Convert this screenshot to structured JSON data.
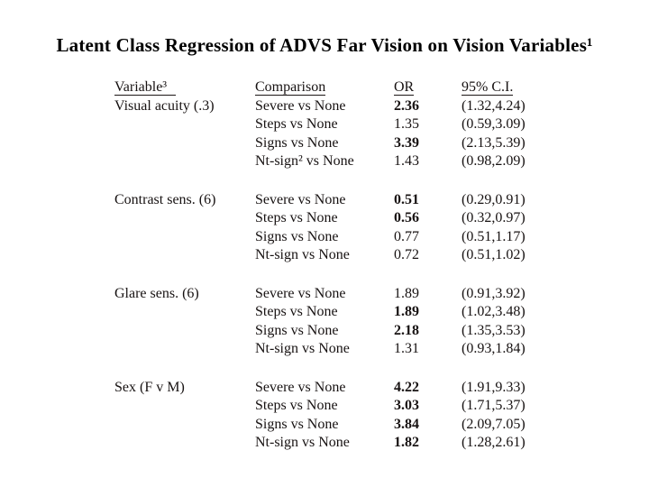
{
  "slide": {
    "title": "Latent Class Regression of ADVS Far Vision on Vision Variables¹"
  },
  "table": {
    "headers": {
      "variable": "Variable³",
      "comparison": "Comparison",
      "or": "OR",
      "ci": "95% C.I."
    },
    "groups": [
      {
        "variable": "Visual acuity (.3)",
        "rows": [
          {
            "comparison": "Severe vs None",
            "or": "2.36",
            "or_bold": true,
            "ci": "(1.32,4.24)"
          },
          {
            "comparison": "Steps vs None",
            "or": "1.35",
            "or_bold": false,
            "ci": "(0.59,3.09)"
          },
          {
            "comparison": "Signs vs None",
            "or": "3.39",
            "or_bold": true,
            "ci": "(2.13,5.39)"
          },
          {
            "comparison": "Nt-sign² vs None",
            "or": "1.43",
            "or_bold": false,
            "ci": "(0.98,2.09)"
          }
        ]
      },
      {
        "variable": "Contrast sens. (6)",
        "rows": [
          {
            "comparison": "Severe vs None",
            "or": "0.51",
            "or_bold": true,
            "ci": "(0.29,0.91)"
          },
          {
            "comparison": "Steps vs None",
            "or": "0.56",
            "or_bold": true,
            "ci": "(0.32,0.97)"
          },
          {
            "comparison": "Signs vs None",
            "or": "0.77",
            "or_bold": false,
            "ci": "(0.51,1.17)"
          },
          {
            "comparison": "Nt-sign vs None",
            "or": "0.72",
            "or_bold": false,
            "ci": "(0.51,1.02)"
          }
        ]
      },
      {
        "variable": "Glare sens. (6)",
        "rows": [
          {
            "comparison": "Severe vs None",
            "or": "1.89",
            "or_bold": false,
            "ci": "(0.91,3.92)"
          },
          {
            "comparison": "Steps vs None",
            "or": "1.89",
            "or_bold": true,
            "ci": "(1.02,3.48)"
          },
          {
            "comparison": "Signs vs None",
            "or": "2.18",
            "or_bold": true,
            "ci": "(1.35,3.53)"
          },
          {
            "comparison": "Nt-sign vs None",
            "or": "1.31",
            "or_bold": false,
            "ci": "(0.93,1.84)"
          }
        ]
      },
      {
        "variable": "Sex (F v M)",
        "rows": [
          {
            "comparison": "Severe vs None",
            "or": "4.22",
            "or_bold": true,
            "ci": "(1.91,9.33)"
          },
          {
            "comparison": "Steps vs None",
            "or": "3.03",
            "or_bold": true,
            "ci": "(1.71,5.37)"
          },
          {
            "comparison": "Signs vs None",
            "or": "3.84",
            "or_bold": true,
            "ci": "(2.09,7.05)"
          },
          {
            "comparison": "Nt-sign vs None",
            "or": "1.82",
            "or_bold": true,
            "ci": "(1.28,2.61)"
          }
        ]
      }
    ]
  },
  "colors": {
    "background": "#ffffff",
    "title_text": "#000000",
    "body_text": "#171212"
  }
}
